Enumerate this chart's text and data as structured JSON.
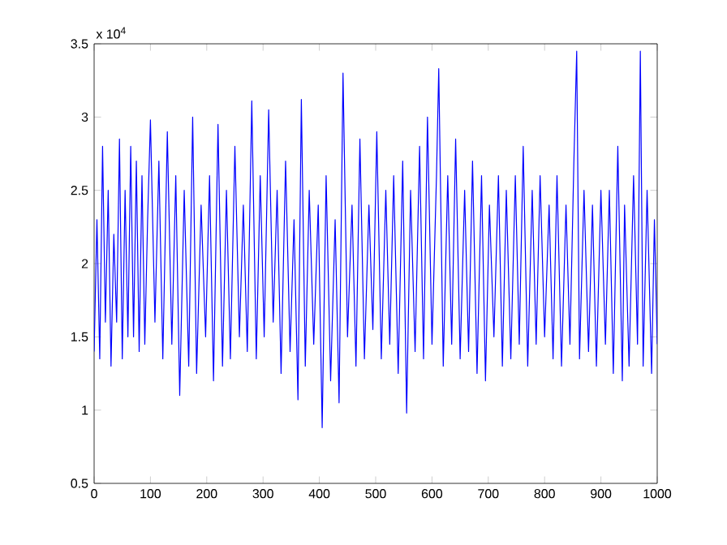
{
  "chart_data": {
    "type": "line",
    "color": "#0000ff",
    "x": [
      0,
      5,
      10,
      15,
      20,
      25,
      30,
      35,
      40,
      45,
      50,
      55,
      60,
      65,
      70,
      75,
      80,
      85,
      90,
      95,
      100,
      108,
      115,
      122,
      130,
      138,
      145,
      152,
      160,
      168,
      175,
      182,
      190,
      198,
      205,
      212,
      220,
      228,
      235,
      242,
      250,
      258,
      265,
      272,
      280,
      288,
      295,
      302,
      310,
      318,
      325,
      332,
      340,
      348,
      355,
      362,
      368,
      375,
      382,
      390,
      398,
      405,
      412,
      420,
      428,
      435,
      442,
      450,
      458,
      465,
      472,
      480,
      488,
      495,
      502,
      510,
      518,
      525,
      532,
      540,
      548,
      555,
      562,
      570,
      578,
      585,
      592,
      600,
      608,
      612,
      620,
      628,
      635,
      642,
      650,
      658,
      665,
      672,
      680,
      688,
      695,
      702,
      710,
      718,
      725,
      732,
      740,
      748,
      755,
      762,
      770,
      778,
      785,
      792,
      800,
      808,
      815,
      822,
      830,
      838,
      845,
      852,
      857,
      862,
      870,
      878,
      885,
      892,
      900,
      908,
      915,
      922,
      930,
      938,
      942,
      950,
      958,
      965,
      970,
      975,
      982,
      990,
      995,
      1000
    ],
    "values": [
      1.4,
      2.3,
      1.35,
      2.8,
      1.6,
      2.5,
      1.3,
      2.2,
      1.6,
      2.85,
      1.35,
      2.5,
      1.5,
      2.8,
      1.5,
      2.7,
      1.4,
      2.6,
      1.45,
      2.3,
      2.98,
      1.6,
      2.7,
      1.35,
      2.9,
      1.45,
      2.6,
      1.1,
      2.5,
      1.3,
      3.0,
      1.25,
      2.4,
      1.5,
      2.6,
      1.2,
      2.95,
      1.3,
      2.5,
      1.35,
      2.8,
      1.5,
      2.4,
      1.4,
      3.11,
      1.35,
      2.6,
      1.5,
      3.05,
      1.6,
      2.5,
      1.25,
      2.7,
      1.4,
      2.3,
      1.07,
      3.12,
      1.3,
      2.5,
      1.45,
      2.4,
      0.88,
      2.6,
      1.2,
      2.3,
      1.05,
      3.3,
      1.5,
      2.4,
      1.3,
      2.85,
      1.35,
      2.4,
      1.55,
      2.9,
      1.35,
      2.5,
      1.45,
      2.6,
      1.25,
      2.7,
      0.98,
      2.5,
      1.4,
      2.8,
      1.35,
      3.0,
      1.45,
      2.6,
      3.33,
      1.3,
      2.6,
      1.45,
      2.85,
      1.35,
      2.5,
      1.4,
      2.7,
      1.25,
      2.6,
      1.2,
      2.4,
      1.5,
      2.6,
      1.3,
      2.5,
      1.35,
      2.6,
      1.45,
      2.8,
      1.3,
      2.5,
      1.45,
      2.6,
      1.5,
      2.4,
      1.35,
      2.6,
      1.3,
      2.4,
      1.45,
      2.7,
      3.45,
      1.35,
      2.5,
      1.4,
      2.4,
      1.3,
      2.5,
      1.45,
      2.5,
      1.25,
      2.8,
      1.2,
      2.4,
      1.3,
      2.6,
      1.45,
      3.45,
      1.3,
      2.5,
      1.25,
      2.3,
      1.45
    ],
    "xlim": [
      0,
      1000
    ],
    "ylim": [
      0.5,
      3.5
    ],
    "xticks": [
      0,
      100,
      200,
      300,
      400,
      500,
      600,
      700,
      800,
      900,
      1000
    ],
    "yticks": [
      0.5,
      1,
      1.5,
      2,
      2.5,
      3,
      3.5
    ],
    "annotations": [
      "x 10$^{4}$"
    ]
  }
}
